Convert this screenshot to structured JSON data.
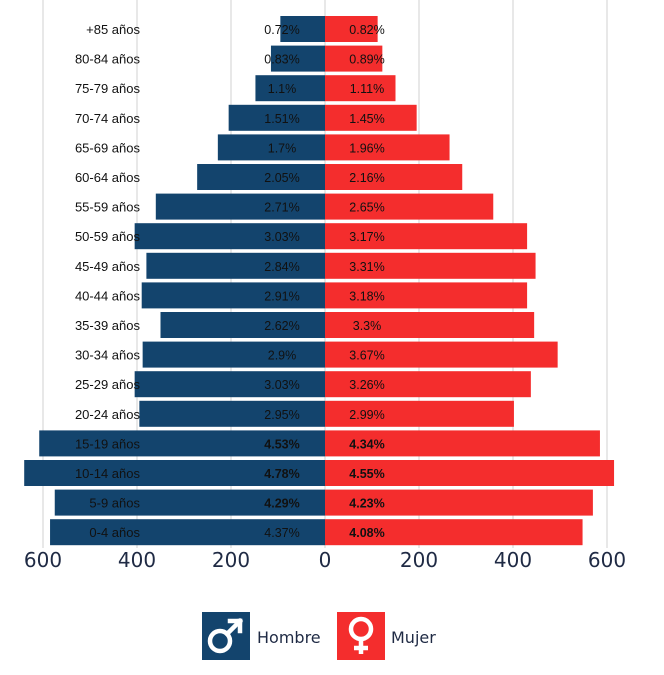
{
  "chart_data": {
    "type": "bar",
    "orientation": "horizontal-population-pyramid",
    "categories": [
      "+85 años",
      "80-84 años",
      "75-79 años",
      "70-74 años",
      "65-69 años",
      "60-64 años",
      "55-59 años",
      "50-59 años",
      "45-49 años",
      "40-44 años",
      "35-39 años",
      "30-34 años",
      "25-29 años",
      "20-24 años",
      "15-19 años",
      "10-14 años",
      "5-9  años",
      "0-4 años"
    ],
    "series": [
      {
        "name": "Hombre",
        "color": "#13446d",
        "values": [
          95,
          115,
          148,
          205,
          228,
          272,
          360,
          405,
          380,
          390,
          350,
          388,
          405,
          395,
          608,
          640,
          575,
          585
        ],
        "labels": [
          "0.72%",
          "0.83%",
          "1.1%",
          "1.51%",
          "1.7%",
          "2.05%",
          "2.71%",
          "3.03%",
          "2.84%",
          "2.91%",
          "2.62%",
          "2.9%",
          "3.03%",
          "2.95%",
          "4.53%",
          "4.78%",
          "4.29%",
          "4.37%"
        ],
        "bold": [
          false,
          false,
          false,
          false,
          false,
          false,
          false,
          false,
          false,
          false,
          false,
          false,
          false,
          false,
          true,
          true,
          true,
          false
        ]
      },
      {
        "name": "Mujer",
        "color": "#f42d2d",
        "values": [
          112,
          122,
          150,
          195,
          265,
          292,
          358,
          430,
          448,
          430,
          445,
          495,
          438,
          402,
          585,
          615,
          570,
          548
        ],
        "labels": [
          "0.82%",
          "0.89%",
          "1.11%",
          "1.45%",
          "1.96%",
          "2.16%",
          "2.65%",
          "3.17%",
          "3.31%",
          "3.18%",
          "3.3%",
          "3.67%",
          "3.26%",
          "2.99%",
          "4.34%",
          "4.55%",
          "4.23%",
          "4.08%"
        ],
        "bold": [
          false,
          false,
          false,
          false,
          false,
          false,
          false,
          false,
          false,
          false,
          false,
          false,
          false,
          false,
          true,
          true,
          true,
          true
        ]
      }
    ],
    "xticks": [
      "600",
      "400",
      "200",
      "0",
      "200",
      "400",
      "600"
    ],
    "xlim": [
      -600,
      600
    ],
    "grid": true,
    "legend": [
      {
        "label": "Hombre",
        "icon": "male-symbol-icon",
        "color": "#13446d"
      },
      {
        "label": "Mujer",
        "icon": "female-symbol-icon",
        "color": "#f42d2d"
      }
    ],
    "legend_position": "bottom-center"
  }
}
